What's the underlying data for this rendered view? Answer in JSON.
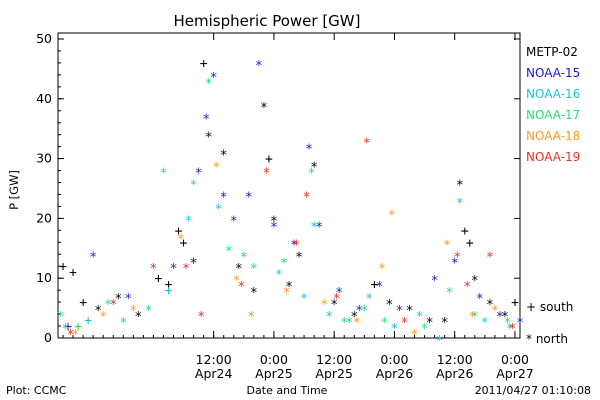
{
  "chart_data": {
    "type": "scatter",
    "title": "Hemispheric Power [GW]",
    "xlabel": "Date and Time",
    "ylabel": "P [GW]",
    "ylim": [
      0,
      51
    ],
    "xlim": [
      "2011-04-23 05:00",
      "2011-04-27 01:00"
    ],
    "y_ticks": [
      0,
      10,
      20,
      30,
      40,
      50
    ],
    "x_ticks": [
      {
        "top": "12:00",
        "bottom": "Apr24",
        "t": "2011-04-24 12:00"
      },
      {
        "top": "0:00",
        "bottom": "Apr25",
        "t": "2011-04-25 00:00"
      },
      {
        "top": "12:00",
        "bottom": "Apr25",
        "t": "2011-04-25 12:00"
      },
      {
        "top": "0:00",
        "bottom": "Apr26",
        "t": "2011-04-26 00:00"
      },
      {
        "top": "12:00",
        "bottom": "Apr26",
        "t": "2011-04-26 12:00"
      },
      {
        "top": "0:00",
        "bottom": "Apr27",
        "t": "2011-04-27 00:00"
      }
    ],
    "hemisphere_symbols": [
      {
        "symbol": "+",
        "label": "south"
      },
      {
        "symbol": "*",
        "label": "north"
      }
    ],
    "series": [
      {
        "name": "METP-02",
        "color": "#000000",
        "points": [
          {
            "x": "2011-04-23 06:00",
            "y": 12,
            "h": "south"
          },
          {
            "x": "2011-04-23 08:00",
            "y": 11,
            "h": "south"
          },
          {
            "x": "2011-04-23 10:00",
            "y": 6,
            "h": "south"
          },
          {
            "x": "2011-04-23 13:00",
            "y": 5,
            "h": "north"
          },
          {
            "x": "2011-04-23 17:00",
            "y": 7,
            "h": "north"
          },
          {
            "x": "2011-04-23 21:00",
            "y": 4,
            "h": "north"
          },
          {
            "x": "2011-04-24 01:00",
            "y": 10,
            "h": "south"
          },
          {
            "x": "2011-04-24 03:00",
            "y": 9,
            "h": "south"
          },
          {
            "x": "2011-04-24 05:00",
            "y": 18,
            "h": "south"
          },
          {
            "x": "2011-04-24 06:00",
            "y": 16,
            "h": "south"
          },
          {
            "x": "2011-04-24 08:00",
            "y": 13,
            "h": "north"
          },
          {
            "x": "2011-04-24 10:00",
            "y": 46,
            "h": "south"
          },
          {
            "x": "2011-04-24 11:00",
            "y": 34,
            "h": "north"
          },
          {
            "x": "2011-04-24 14:00",
            "y": 31,
            "h": "north"
          },
          {
            "x": "2011-04-24 17:00",
            "y": 12,
            "h": "north"
          },
          {
            "x": "2011-04-24 20:00",
            "y": 8,
            "h": "north"
          },
          {
            "x": "2011-04-24 22:00",
            "y": 39,
            "h": "north"
          },
          {
            "x": "2011-04-24 23:00",
            "y": 30,
            "h": "south"
          },
          {
            "x": "2011-04-25 00:00",
            "y": 20,
            "h": "north"
          },
          {
            "x": "2011-04-25 03:00",
            "y": 9,
            "h": "north"
          },
          {
            "x": "2011-04-25 05:00",
            "y": 14,
            "h": "north"
          },
          {
            "x": "2011-04-25 08:00",
            "y": 29,
            "h": "north"
          },
          {
            "x": "2011-04-25 12:00",
            "y": 6,
            "h": "north"
          },
          {
            "x": "2011-04-25 16:00",
            "y": 4,
            "h": "north"
          },
          {
            "x": "2011-04-25 20:00",
            "y": 9,
            "h": "south"
          },
          {
            "x": "2011-04-25 23:00",
            "y": 6,
            "h": "north"
          },
          {
            "x": "2011-04-26 03:00",
            "y": 5,
            "h": "north"
          },
          {
            "x": "2011-04-26 07:00",
            "y": 3,
            "h": "north"
          },
          {
            "x": "2011-04-26 10:00",
            "y": 3,
            "h": "north"
          },
          {
            "x": "2011-04-26 13:00",
            "y": 26,
            "h": "north"
          },
          {
            "x": "2011-04-26 14:00",
            "y": 18,
            "h": "south"
          },
          {
            "x": "2011-04-26 15:00",
            "y": 16,
            "h": "south"
          },
          {
            "x": "2011-04-26 16:00",
            "y": 10,
            "h": "north"
          },
          {
            "x": "2011-04-26 19:00",
            "y": 6,
            "h": "north"
          },
          {
            "x": "2011-04-26 22:00",
            "y": 4,
            "h": "north"
          },
          {
            "x": "2011-04-27 00:00",
            "y": 6,
            "h": "south"
          }
        ]
      },
      {
        "name": "NOAA-15",
        "color": "#1a1ad0",
        "points": [
          {
            "x": "2011-04-23 07:00",
            "y": 2,
            "h": "south"
          },
          {
            "x": "2011-04-23 12:00",
            "y": 14,
            "h": "north"
          },
          {
            "x": "2011-04-23 19:00",
            "y": 7,
            "h": "north"
          },
          {
            "x": "2011-04-24 04:00",
            "y": 12,
            "h": "north"
          },
          {
            "x": "2011-04-24 09:00",
            "y": 28,
            "h": "north"
          },
          {
            "x": "2011-04-24 10:30",
            "y": 37,
            "h": "north"
          },
          {
            "x": "2011-04-24 12:00",
            "y": 44,
            "h": "north"
          },
          {
            "x": "2011-04-24 14:00",
            "y": 24,
            "h": "north"
          },
          {
            "x": "2011-04-24 16:00",
            "y": 20,
            "h": "north"
          },
          {
            "x": "2011-04-24 19:00",
            "y": 24,
            "h": "north"
          },
          {
            "x": "2011-04-24 21:00",
            "y": 46,
            "h": "north"
          },
          {
            "x": "2011-04-25 00:00",
            "y": 19,
            "h": "north"
          },
          {
            "x": "2011-04-25 04:00",
            "y": 16,
            "h": "north"
          },
          {
            "x": "2011-04-25 07:00",
            "y": 32,
            "h": "north"
          },
          {
            "x": "2011-04-25 09:00",
            "y": 19,
            "h": "north"
          },
          {
            "x": "2011-04-25 13:00",
            "y": 8,
            "h": "north"
          },
          {
            "x": "2011-04-25 17:00",
            "y": 5,
            "h": "north"
          },
          {
            "x": "2011-04-25 21:00",
            "y": 9,
            "h": "north"
          },
          {
            "x": "2011-04-26 01:00",
            "y": 5,
            "h": "north"
          },
          {
            "x": "2011-04-26 08:00",
            "y": 10,
            "h": "north"
          },
          {
            "x": "2011-04-26 12:00",
            "y": 13,
            "h": "north"
          },
          {
            "x": "2011-04-26 17:00",
            "y": 7,
            "h": "north"
          },
          {
            "x": "2011-04-26 21:00",
            "y": 4,
            "h": "north"
          },
          {
            "x": "2011-04-27 01:00",
            "y": 3,
            "h": "north"
          }
        ]
      },
      {
        "name": "NOAA-16",
        "color": "#18c4d8",
        "points": [
          {
            "x": "2011-04-23 06:30",
            "y": 2,
            "h": "north"
          },
          {
            "x": "2011-04-23 11:00",
            "y": 3,
            "h": "south"
          },
          {
            "x": "2011-04-23 18:00",
            "y": 3,
            "h": "north"
          },
          {
            "x": "2011-04-24 03:00",
            "y": 8,
            "h": "south"
          },
          {
            "x": "2011-04-24 07:00",
            "y": 20,
            "h": "north"
          },
          {
            "x": "2011-04-24 13:00",
            "y": 22,
            "h": "north"
          },
          {
            "x": "2011-04-24 18:00",
            "y": 14,
            "h": "north"
          },
          {
            "x": "2011-04-25 01:00",
            "y": 11,
            "h": "north"
          },
          {
            "x": "2011-04-25 06:00",
            "y": 7,
            "h": "north"
          },
          {
            "x": "2011-04-25 08:00",
            "y": 19,
            "h": "north"
          },
          {
            "x": "2011-04-25 11:00",
            "y": 4,
            "h": "north"
          },
          {
            "x": "2011-04-25 15:00",
            "y": 3,
            "h": "north"
          },
          {
            "x": "2011-04-25 19:00",
            "y": 7,
            "h": "north"
          },
          {
            "x": "2011-04-26 00:00",
            "y": 2,
            "h": "north"
          },
          {
            "x": "2011-04-26 05:00",
            "y": 4,
            "h": "north"
          },
          {
            "x": "2011-04-26 09:00",
            "y": 0,
            "h": "north"
          },
          {
            "x": "2011-04-26 13:00",
            "y": 23,
            "h": "north"
          },
          {
            "x": "2011-04-26 18:00",
            "y": 3,
            "h": "north"
          },
          {
            "x": "2011-04-26 23:00",
            "y": 2,
            "h": "north"
          }
        ]
      },
      {
        "name": "NOAA-17",
        "color": "#22e07a",
        "points": [
          {
            "x": "2011-04-23 05:30",
            "y": 4,
            "h": "north"
          },
          {
            "x": "2011-04-23 09:00",
            "y": 2,
            "h": "south"
          },
          {
            "x": "2011-04-23 15:00",
            "y": 6,
            "h": "north"
          },
          {
            "x": "2011-04-23 23:00",
            "y": 5,
            "h": "north"
          },
          {
            "x": "2011-04-24 02:00",
            "y": 28,
            "h": "north"
          },
          {
            "x": "2011-04-24 08:00",
            "y": 26,
            "h": "north"
          },
          {
            "x": "2011-04-24 11:00",
            "y": 43,
            "h": "north"
          },
          {
            "x": "2011-04-24 15:00",
            "y": 15,
            "h": "north"
          },
          {
            "x": "2011-04-24 20:00",
            "y": 12,
            "h": "north"
          },
          {
            "x": "2011-04-25 02:00",
            "y": 13,
            "h": "north"
          },
          {
            "x": "2011-04-25 07:30",
            "y": 28,
            "h": "north"
          },
          {
            "x": "2011-04-25 14:00",
            "y": 3,
            "h": "north"
          },
          {
            "x": "2011-04-25 18:00",
            "y": 5,
            "h": "north"
          },
          {
            "x": "2011-04-25 22:00",
            "y": 3,
            "h": "north"
          },
          {
            "x": "2011-04-26 06:00",
            "y": 2,
            "h": "north"
          },
          {
            "x": "2011-04-26 11:00",
            "y": 8,
            "h": "north"
          },
          {
            "x": "2011-04-26 16:00",
            "y": 4,
            "h": "north"
          },
          {
            "x": "2011-04-26 22:30",
            "y": 3,
            "h": "north"
          }
        ]
      },
      {
        "name": "NOAA-18",
        "color": "#ff9820",
        "points": [
          {
            "x": "2011-04-23 08:30",
            "y": 1,
            "h": "north"
          },
          {
            "x": "2011-04-23 14:00",
            "y": 4,
            "h": "north"
          },
          {
            "x": "2011-04-23 20:00",
            "y": 5,
            "h": "north"
          },
          {
            "x": "2011-04-24 05:30",
            "y": 17,
            "h": "north"
          },
          {
            "x": "2011-04-24 12:30",
            "y": 29,
            "h": "north"
          },
          {
            "x": "2011-04-24 16:30",
            "y": 10,
            "h": "north"
          },
          {
            "x": "2011-04-24 19:30",
            "y": 4,
            "h": "north"
          },
          {
            "x": "2011-04-25 02:30",
            "y": 8,
            "h": "north"
          },
          {
            "x": "2011-04-25 10:00",
            "y": 6,
            "h": "north"
          },
          {
            "x": "2011-04-25 16:30",
            "y": 3,
            "h": "north"
          },
          {
            "x": "2011-04-25 21:30",
            "y": 12,
            "h": "north"
          },
          {
            "x": "2011-04-25 23:30",
            "y": 21,
            "h": "north"
          },
          {
            "x": "2011-04-26 04:00",
            "y": 1,
            "h": "north"
          },
          {
            "x": "2011-04-26 10:30",
            "y": 16,
            "h": "north"
          },
          {
            "x": "2011-04-26 15:30",
            "y": 4,
            "h": "north"
          },
          {
            "x": "2011-04-26 20:00",
            "y": 5,
            "h": "north"
          }
        ]
      },
      {
        "name": "NOAA-19",
        "color": "#e8301c",
        "points": [
          {
            "x": "2011-04-23 07:30",
            "y": 1,
            "h": "north"
          },
          {
            "x": "2011-04-23 16:00",
            "y": 6,
            "h": "north"
          },
          {
            "x": "2011-04-24 00:00",
            "y": 12,
            "h": "north"
          },
          {
            "x": "2011-04-24 06:30",
            "y": 12,
            "h": "north"
          },
          {
            "x": "2011-04-24 09:30",
            "y": 4,
            "h": "north"
          },
          {
            "x": "2011-04-24 17:30",
            "y": 9,
            "h": "north"
          },
          {
            "x": "2011-04-24 22:30",
            "y": 28,
            "h": "north"
          },
          {
            "x": "2011-04-25 04:30",
            "y": 16,
            "h": "north"
          },
          {
            "x": "2011-04-25 06:30",
            "y": 24,
            "h": "north"
          },
          {
            "x": "2011-04-25 12:30",
            "y": 7,
            "h": "north"
          },
          {
            "x": "2011-04-25 18:30",
            "y": 33,
            "h": "north"
          },
          {
            "x": "2011-04-26 02:00",
            "y": 3,
            "h": "north"
          },
          {
            "x": "2011-04-26 12:30",
            "y": 14,
            "h": "north"
          },
          {
            "x": "2011-04-26 14:30",
            "y": 9,
            "h": "north"
          },
          {
            "x": "2011-04-26 19:00",
            "y": 14,
            "h": "north"
          },
          {
            "x": "2011-04-26 23:30",
            "y": 2,
            "h": "north"
          }
        ]
      }
    ]
  },
  "footer": {
    "left": "Plot: CCMC",
    "center": "Date and Time",
    "right": "2011/04/27 01:10:08"
  }
}
